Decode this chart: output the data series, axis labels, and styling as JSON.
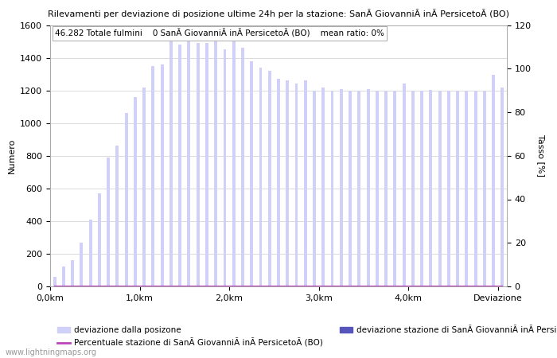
{
  "title": "Rilevamenti per deviazione di posizione ultime 24h per la stazione: SanÃ GiovanniÃ inÃ PersicetoÃ (BO)",
  "annotation": "46.282 Totale fulmini    0 SanÃ GiovanniÃ inÃ PersicetoÃ (BO)    mean ratio: 0%",
  "ylabel_left": "Numero",
  "ylabel_right": "Tasso [%]",
  "ylim_left": [
    0,
    1600
  ],
  "ylim_right": [
    0,
    120
  ],
  "yticks_left": [
    0,
    200,
    400,
    600,
    800,
    1000,
    1200,
    1400,
    1600
  ],
  "yticks_right": [
    0,
    20,
    40,
    60,
    80,
    100,
    120
  ],
  "xtick_labels": [
    "0,0km",
    "1,0km",
    "2,0km",
    "3,0km",
    "4,0km",
    "Deviazione"
  ],
  "bar_color_global": "#d0d0f8",
  "bar_color_station": "#5555bb",
  "line_color": "#bb44bb",
  "background_color": "#ffffff",
  "grid_color": "#cccccc",
  "watermark": "www.lightningmaps.org",
  "legend_label_1": "deviazione dalla posizone",
  "legend_label_2": "deviazione stazione di SanÃ GiovanniÃ inÃ PersicetoÃ (BO)",
  "legend_label_3": "Percentuale stazione di SanÃ GiovanniÃ inÃ PersicetoÃ (BO)",
  "global_counts": [
    60,
    120,
    160,
    270,
    410,
    570,
    790,
    860,
    1060,
    1160,
    1220,
    1350,
    1360,
    1500,
    1480,
    1500,
    1490,
    1490,
    1510,
    1450,
    1500,
    1460,
    1380,
    1340,
    1320,
    1270,
    1260,
    1240,
    1260,
    1200,
    1220,
    1200,
    1210,
    1200,
    1200,
    1210,
    1200,
    1200,
    1200,
    1240,
    1200,
    1200,
    1205,
    1200,
    1200,
    1200,
    1200,
    1200,
    1200,
    1295,
    1220
  ],
  "station_counts": [
    0,
    0,
    0,
    0,
    0,
    0,
    0,
    0,
    0,
    0,
    0,
    0,
    0,
    0,
    0,
    0,
    0,
    0,
    0,
    0,
    0,
    0,
    0,
    0,
    0,
    0,
    0,
    0,
    0,
    0,
    0,
    0,
    0,
    0,
    0,
    0,
    0,
    0,
    0,
    0,
    0,
    0,
    0,
    0,
    0,
    0,
    0,
    0,
    0,
    0,
    0
  ],
  "ratio_line": [
    0,
    0,
    0,
    0,
    0,
    0,
    0,
    0,
    0,
    0,
    0,
    0,
    0,
    0,
    0,
    0,
    0,
    0,
    0,
    0,
    0,
    0,
    0,
    0,
    0,
    0,
    0,
    0,
    0,
    0,
    0,
    0,
    0,
    0,
    0,
    0,
    0,
    0,
    0,
    0,
    0,
    0,
    0,
    0,
    0,
    0,
    0,
    0,
    0,
    0,
    0
  ],
  "n_bars": 51,
  "bar_width": 0.35,
  "x_start": 0.5,
  "x_end": 51.5,
  "xtick_positions_data": [
    0.5,
    10.5,
    20.5,
    30.5,
    40.5,
    50.5
  ]
}
